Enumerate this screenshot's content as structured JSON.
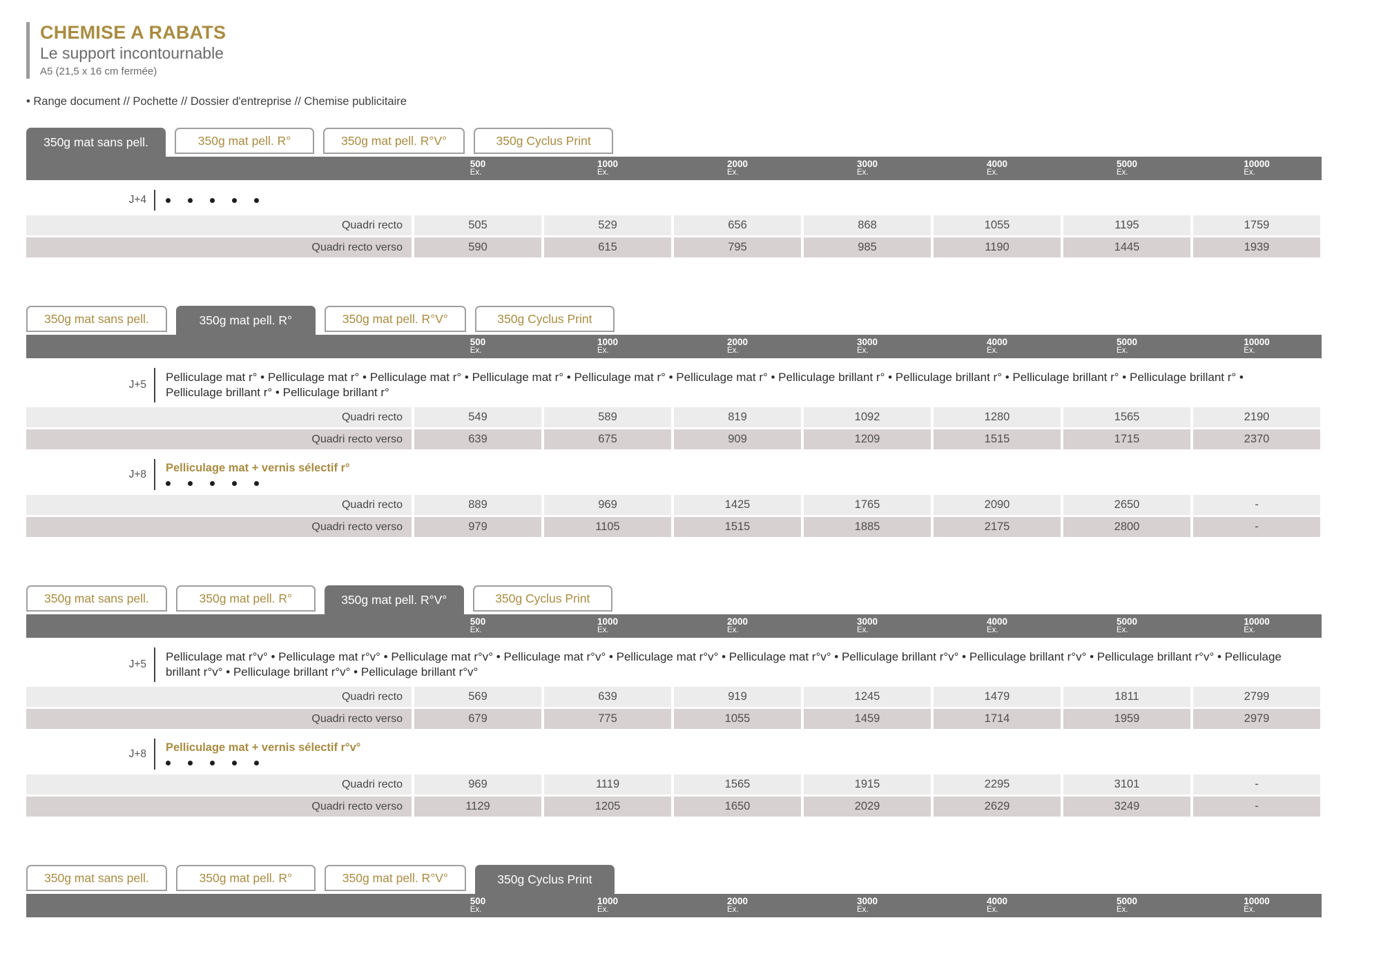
{
  "page": {
    "title": "CHEMISE A RABATS",
    "subtitle": "Le support incontournable",
    "format": "A5 (21,5 x 16 cm fermée)",
    "keywords": "• Range document // Pochette // Dossier d'entreprise // Chemise publicitaire"
  },
  "colors": {
    "accent_gold": "#a98c42",
    "bar_gray": "#737373",
    "row_light": "#ececec",
    "row_dark": "#d8d1d2"
  },
  "tabs": [
    "350g mat sans pell.",
    "350g mat pell. R°",
    "350g mat pell. R°V°",
    "350g Cyclus Print"
  ],
  "quantities": [
    "500",
    "1000",
    "2000",
    "3000",
    "4000",
    "5000",
    "10000"
  ],
  "quantity_unit": "Ex.",
  "sections": [
    {
      "active_tab": 0,
      "blocks": [
        {
          "delay": "J+4",
          "type": "bullets",
          "bullet_count": 5,
          "rows": [
            {
              "label": "Quadri recto",
              "values": [
                "505",
                "529",
                "656",
                "868",
                "1055",
                "1195",
                "1759"
              ]
            },
            {
              "label": "Quadri recto verso",
              "values": [
                "590",
                "615",
                "795",
                "985",
                "1190",
                "1445",
                "1939"
              ]
            }
          ]
        }
      ]
    },
    {
      "active_tab": 1,
      "blocks": [
        {
          "delay": "J+5",
          "type": "description",
          "description": "Pelliculage mat r° • Pelliculage mat r° • Pelliculage mat r° • Pelliculage mat r° • Pelliculage mat r° • Pelliculage mat r° • Pelliculage brillant r° • Pelliculage brillant r° • Pelliculage brillant r° • Pelliculage brillant r° • Pelliculage brillant r° • Pelliculage brillant r°",
          "rows": [
            {
              "label": "Quadri recto",
              "values": [
                "549",
                "589",
                "819",
                "1092",
                "1280",
                "1565",
                "2190"
              ]
            },
            {
              "label": "Quadri recto verso",
              "values": [
                "639",
                "675",
                "909",
                "1209",
                "1515",
                "1715",
                "2370"
              ]
            }
          ]
        },
        {
          "delay": "J+8",
          "type": "titled-bullets",
          "title": "Pelliculage mat + vernis sélectif r°",
          "bullet_count": 5,
          "rows": [
            {
              "label": "Quadri recto",
              "values": [
                "889",
                "969",
                "1425",
                "1765",
                "2090",
                "2650",
                "-"
              ]
            },
            {
              "label": "Quadri recto verso",
              "values": [
                "979",
                "1105",
                "1515",
                "1885",
                "2175",
                "2800",
                "-"
              ]
            }
          ]
        }
      ]
    },
    {
      "active_tab": 2,
      "blocks": [
        {
          "delay": "J+5",
          "type": "description",
          "description": "Pelliculage mat r°v° • Pelliculage mat r°v° • Pelliculage mat r°v° • Pelliculage mat r°v° • Pelliculage mat r°v° • Pelliculage mat r°v° • Pelliculage brillant r°v° • Pelliculage brillant r°v° • Pelliculage brillant r°v° • Pelliculage brillant r°v° • Pelliculage brillant r°v° • Pelliculage brillant r°v°",
          "rows": [
            {
              "label": "Quadri recto",
              "values": [
                "569",
                "639",
                "919",
                "1245",
                "1479",
                "1811",
                "2799"
              ]
            },
            {
              "label": "Quadri recto verso",
              "values": [
                "679",
                "775",
                "1055",
                "1459",
                "1714",
                "1959",
                "2979"
              ]
            }
          ]
        },
        {
          "delay": "J+8",
          "type": "titled-bullets",
          "title": "Pelliculage mat + vernis sélectif r°v°",
          "bullet_count": 5,
          "rows": [
            {
              "label": "Quadri recto",
              "values": [
                "969",
                "1119",
                "1565",
                "1915",
                "2295",
                "3101",
                "-"
              ]
            },
            {
              "label": "Quadri recto verso",
              "values": [
                "1129",
                "1205",
                "1650",
                "2029",
                "2629",
                "3249",
                "-"
              ]
            }
          ]
        }
      ]
    },
    {
      "active_tab": 3,
      "blocks": []
    }
  ]
}
